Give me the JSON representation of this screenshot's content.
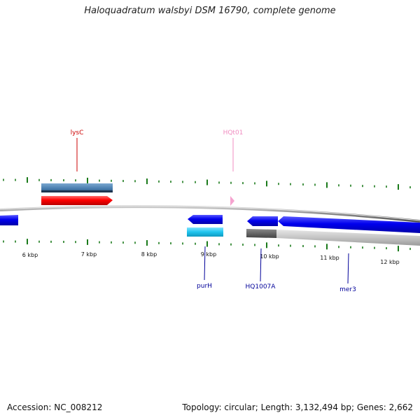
{
  "title": "Haloquadratum walsbyi DSM 16790, complete genome",
  "footer": {
    "accession": "Accession: NC_008212",
    "summary": "Topology: circular; Length: 3,132,494 bp; Genes: 2,662"
  },
  "scale_labels": [
    "6 kbp",
    "7 kbp",
    "8 kbp",
    "9 kbp",
    "10 kbp",
    "11 kbp",
    "12 kbp"
  ],
  "gene_labels": [
    {
      "name": "lysC",
      "color": "#cc0000"
    },
    {
      "name": "HQt01",
      "color": "#f08cc0"
    },
    {
      "name": "purH",
      "color": "#000099"
    },
    {
      "name": "HQ1007A",
      "color": "#000099"
    },
    {
      "name": "mer3",
      "color": "#000099"
    }
  ],
  "colors": {
    "backbone": "#888888",
    "tick": "#1a7a1a",
    "forward_cds": "#ff0000",
    "trna": "#f5a3cf",
    "reverse_cds": "#0000ee",
    "gc_steel": "#4a7fb0",
    "gc_cyan": "#1fc4ee",
    "gc_gray": "#bbbbbb"
  }
}
